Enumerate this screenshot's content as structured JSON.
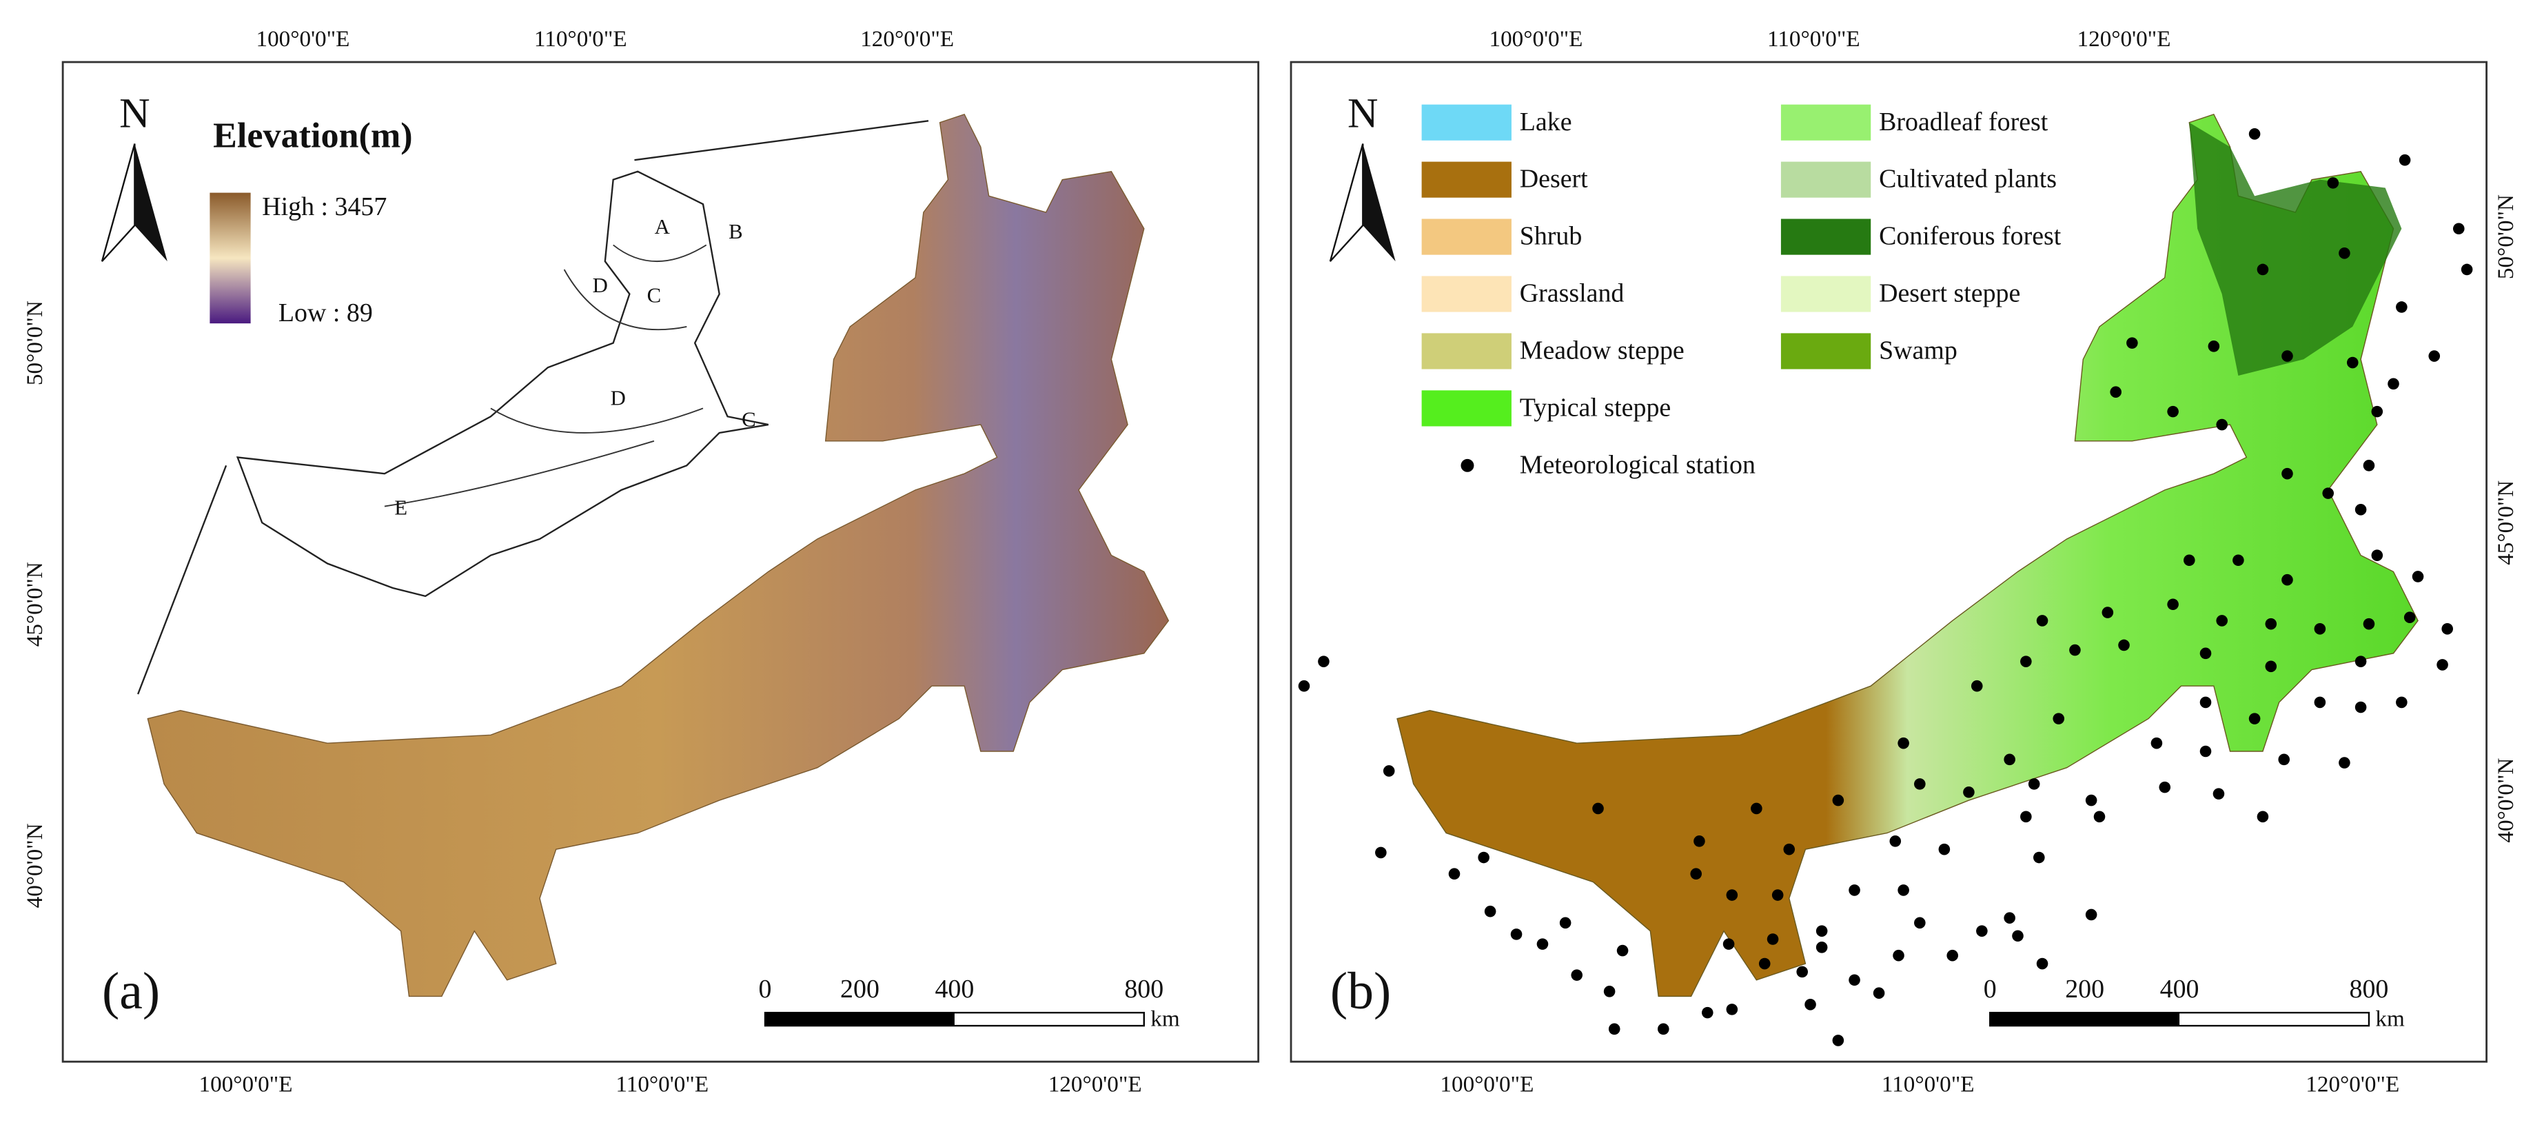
{
  "panel_a": {
    "label": "(a)",
    "north": "N",
    "legend": {
      "title": "Elevation(m)",
      "high": "High : 3457",
      "low": "Low : 89"
    },
    "inset_labels": [
      "A",
      "B",
      "C",
      "D",
      "D",
      "C",
      "E"
    ],
    "scalebar": {
      "ticks": [
        "0",
        "200",
        "400",
        "800"
      ],
      "unit": "km"
    },
    "top_axis": [
      "100°0'0\"E",
      "110°0'0\"E",
      "120°0'0\"E"
    ],
    "bottom_axis": [
      "100°0'0\"E",
      "110°0'0\"E",
      "120°0'0\"E"
    ],
    "left_axis": [
      "50°0'0\"N",
      "45°0'0\"N",
      "40°0'0\"N"
    ]
  },
  "panel_b": {
    "label": "(b)",
    "north": "N",
    "legend": [
      {
        "label": "Lake",
        "color": "#6ed9f6"
      },
      {
        "label": "Desert",
        "color": "#a8700f"
      },
      {
        "label": "Shrub",
        "color": "#f3c880"
      },
      {
        "label": "Grassland",
        "color": "#fde4b6"
      },
      {
        "label": "Meadow steppe",
        "color": "#cfcf78"
      },
      {
        "label": "Typical steppe",
        "color": "#55ee1e"
      },
      {
        "label": "Broadleaf forest",
        "color": "#98f070"
      },
      {
        "label": "Cultivated plants",
        "color": "#b8dca0"
      },
      {
        "label": "Coniferous forest",
        "color": "#267a12"
      },
      {
        "label": "Desert steppe",
        "color": "#e3f7c0"
      },
      {
        "label": "Swamp",
        "color": "#6aaa10"
      }
    ],
    "station_label": "Meteorological station",
    "scalebar": {
      "ticks": [
        "0",
        "200",
        "400",
        "800"
      ],
      "unit": "km"
    },
    "top_axis": [
      "100°0'0\"E",
      "110°0'0\"E",
      "120°0'0\"E"
    ],
    "bottom_axis": [
      "100°0'0\"E",
      "110°0'0\"E",
      "120°0'0\"E"
    ],
    "right_axis": [
      "50°0'0\"N",
      "45°0'0\"N",
      "40°0'0\"N"
    ]
  }
}
